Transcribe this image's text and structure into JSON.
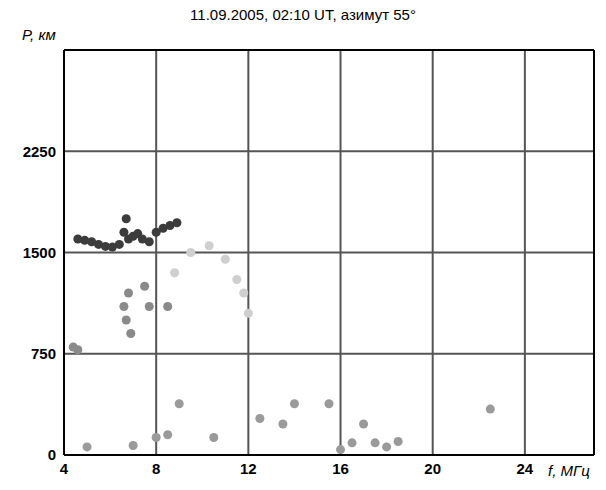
{
  "chart_data": {
    "type": "scatter",
    "title": "11.09.2005, 02:10 UT, азимут 55°",
    "x_label": "f, МГц",
    "y_label": "P, км",
    "xlim": [
      4,
      27
    ],
    "xticks": [
      4,
      8,
      12,
      16,
      20,
      24
    ],
    "ylim": [
      0,
      3000
    ],
    "yticks": [
      0,
      750,
      1500,
      2250
    ],
    "grid": true,
    "marker": "circle",
    "series": [
      {
        "color": "#3c3c3c",
        "x": [
          4.6,
          4.9,
          5.2,
          5.5,
          5.8,
          6.1,
          6.4,
          6.6,
          6.7,
          6.8,
          7.0,
          7.2,
          7.4,
          7.7,
          8.0,
          8.3,
          8.6,
          8.9
        ],
        "y": [
          1600,
          1590,
          1580,
          1560,
          1545,
          1540,
          1560,
          1650,
          1750,
          1600,
          1620,
          1640,
          1600,
          1580,
          1650,
          1680,
          1700,
          1720
        ]
      },
      {
        "color": "#8a8a8a",
        "x": [
          6.6,
          6.7,
          6.8,
          7.5,
          7.7,
          8.5,
          4.4,
          4.6,
          6.9
        ],
        "y": [
          1100,
          1000,
          1200,
          1250,
          1100,
          1100,
          800,
          780,
          900
        ]
      },
      {
        "color": "#cfcfcf",
        "x": [
          10.3,
          11.0,
          11.5,
          11.8,
          12.0,
          9.5,
          8.8
        ],
        "y": [
          1550,
          1450,
          1300,
          1200,
          1050,
          1500,
          1350
        ]
      },
      {
        "color": "#9a9a9a",
        "x": [
          5.0,
          7.0,
          8.0,
          8.5,
          12.5,
          13.5,
          16.5,
          17.5,
          18.5,
          14.0,
          15.5,
          22.5,
          9.0,
          17.0,
          10.5,
          16.0,
          18.0
        ],
        "y": [
          60,
          70,
          130,
          150,
          270,
          230,
          90,
          90,
          100,
          380,
          380,
          340,
          380,
          230,
          130,
          40,
          60
        ]
      }
    ]
  }
}
